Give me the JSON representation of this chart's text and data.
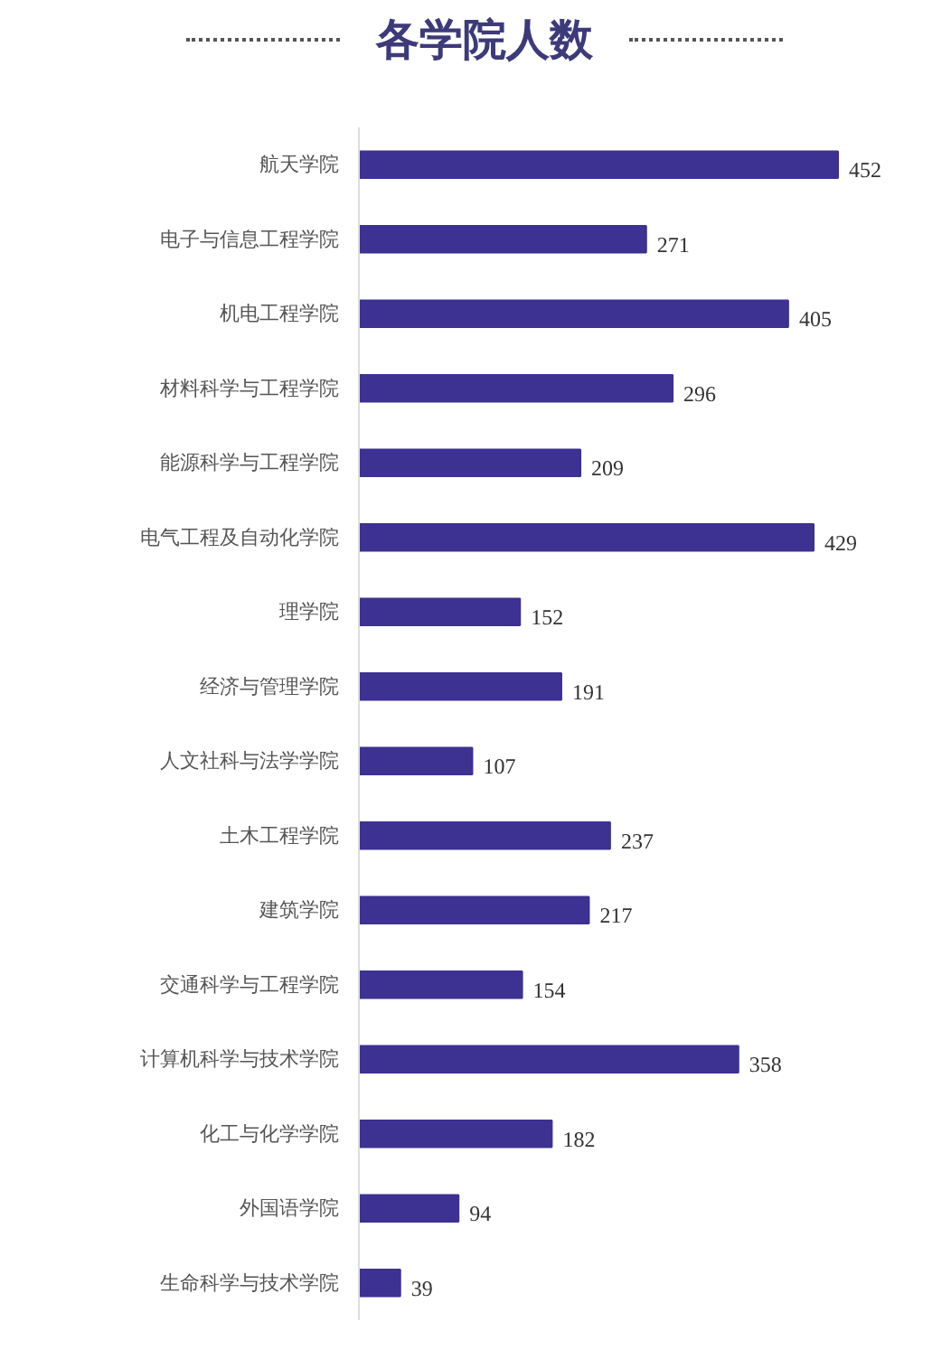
{
  "chart_data": {
    "type": "bar",
    "orientation": "horizontal",
    "title": "各学院人数",
    "categories": [
      "航天学院",
      "电子与信息工程学院",
      "机电工程学院",
      "材料科学与工程学院",
      "能源科学与工程学院",
      "电气工程及自动化学院",
      "理学院",
      "经济与管理学院",
      "人文社科与法学学院",
      "土木工程学院",
      "建筑学院",
      "交通科学与工程学院",
      "计算机科学与技术学院",
      "化工与化学学院",
      "外国语学院",
      "生命科学与技术学院"
    ],
    "values": [
      452,
      271,
      405,
      296,
      209,
      429,
      152,
      191,
      107,
      237,
      217,
      154,
      358,
      182,
      94,
      39
    ],
    "color": "#3d3192",
    "data_labels": true
  }
}
